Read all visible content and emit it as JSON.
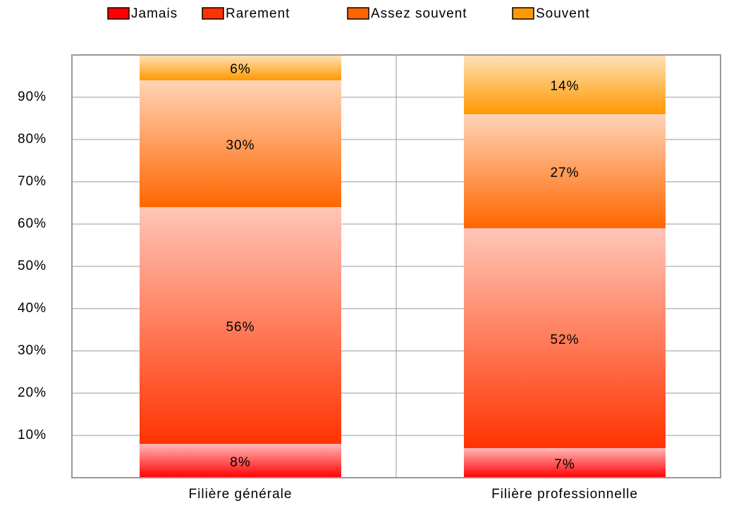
{
  "chart_data": {
    "type": "stacked_bar",
    "categories": [
      "Filière générale",
      "Filière professionnelle"
    ],
    "series": [
      {
        "name": "Jamais",
        "color": "#ff0000",
        "values": [
          8,
          7
        ],
        "value_labels": [
          "8%",
          "7%"
        ]
      },
      {
        "name": "Rarement",
        "color": "#ff3300",
        "values": [
          56,
          52
        ],
        "value_labels": [
          "56%",
          "52%"
        ]
      },
      {
        "name": "Assez souvent",
        "color": "#ff6600",
        "values": [
          30,
          27
        ],
        "value_labels": [
          "30%",
          "27%"
        ]
      },
      {
        "name": "Souvent",
        "color": "#ff9900",
        "values": [
          6,
          14
        ],
        "value_labels": [
          "6%",
          "14%"
        ]
      }
    ],
    "ylim": [
      0,
      100
    ],
    "yticks": [
      {
        "value": 10,
        "label": "10%"
      },
      {
        "value": 20,
        "label": "20%"
      },
      {
        "value": 30,
        "label": "30%"
      },
      {
        "value": 40,
        "label": "40%"
      },
      {
        "value": 50,
        "label": "50%"
      },
      {
        "value": 60,
        "label": "60%"
      },
      {
        "value": 70,
        "label": "70%"
      },
      {
        "value": 80,
        "label": "80%"
      },
      {
        "value": 90,
        "label": "90%"
      }
    ],
    "grid": true,
    "legend": "top"
  }
}
